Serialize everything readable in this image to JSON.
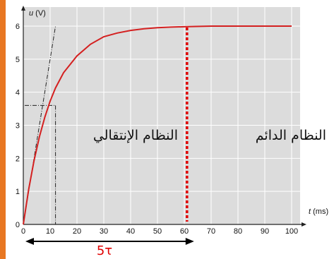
{
  "chart_data": {
    "type": "line",
    "ylabel_symbol": "u",
    "ylabel_unit": "(V)",
    "xlabel_symbol": "t",
    "xlabel_unit": "(ms)",
    "xlim": [
      0,
      100
    ],
    "ylim": [
      0,
      6
    ],
    "x_ticks": [
      0,
      10,
      20,
      30,
      40,
      50,
      60,
      70,
      80,
      90,
      100
    ],
    "y_ticks": [
      0,
      1,
      2,
      3,
      4,
      5,
      6
    ],
    "grid": true,
    "series": [
      {
        "color": "#d42020",
        "x": [
          0,
          2,
          4,
          6,
          8,
          10,
          12,
          15,
          20,
          25,
          30,
          35,
          40,
          45,
          50,
          55,
          60,
          70,
          80,
          90,
          100
        ],
        "y": [
          0,
          1.06,
          1.93,
          2.65,
          3.24,
          3.73,
          4.13,
          4.59,
          5.1,
          5.45,
          5.68,
          5.79,
          5.87,
          5.92,
          5.95,
          5.97,
          5.98,
          6.0,
          6.0,
          6.0,
          6.0
        ]
      }
    ],
    "tangent": {
      "x": [
        0,
        12
      ],
      "y": [
        0,
        6
      ]
    },
    "tau_marker": {
      "x": 12,
      "y": 3.6
    },
    "steady_state_marker_x": 61,
    "annotations": {
      "transient_regime": "النظام الإنتقالي",
      "steady_regime": "النظام الدائم",
      "five_tau": "5τ"
    },
    "colors": {
      "plot_background": "#dcdcdc",
      "grid": "#ffffff",
      "curve": "#d42020",
      "steady_marker": "#e00000",
      "axis": "#222222",
      "frame_accent": "#e87722"
    }
  }
}
